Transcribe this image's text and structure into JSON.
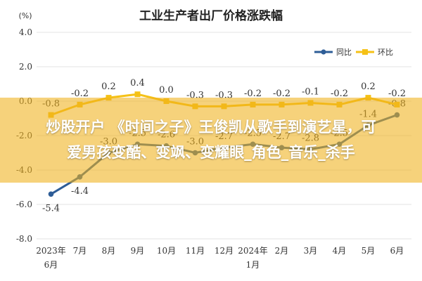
{
  "colors": {
    "yoy": "#2e5d97",
    "mom": "#f5c116",
    "banner": "#f0b21c"
  },
  "banner": {
    "line1": "炒股开户 《时间之子》王俊凯从歌手到演艺星，可",
    "line2": "爱男孩变酷、变飒、变耀眼_角色_音乐_杀手"
  },
  "chart_data": {
    "type": "line",
    "title": "工业生产者出厂价格涨跌幅",
    "ylabel": "(%)",
    "ylim": [
      -8,
      4
    ],
    "yticks": [
      "4.0",
      "2.0",
      "0.0",
      "-2.0",
      "-4.0",
      "-6.0",
      "-8.0"
    ],
    "categories": [
      [
        "2023年",
        "6月"
      ],
      [
        "7月"
      ],
      [
        "8月"
      ],
      [
        "9月"
      ],
      [
        "10月"
      ],
      [
        "11月"
      ],
      [
        "12月"
      ],
      [
        "2024年",
        "1月"
      ],
      [
        "2月"
      ],
      [
        "3月"
      ],
      [
        "4月"
      ],
      [
        "5月"
      ],
      [
        "6月"
      ]
    ],
    "legend_position": "top-right",
    "grid": true,
    "series": [
      {
        "name": "同比",
        "color": "#2e5d97",
        "values": [
          -5.4,
          -4.4,
          -3.0,
          -2.5,
          -2.6,
          -3.0,
          -2.7,
          -2.5,
          -2.7,
          -2.8,
          -2.5,
          -1.4,
          -0.8
        ],
        "labels": [
          "-5.4",
          "-4.4",
          "-3.0",
          "-2.5",
          "-2.6",
          "-3.0",
          "-2.7",
          "-2.5",
          "-2.7",
          "-2.8",
          "-2.5",
          "-1.4",
          "-0.8"
        ]
      },
      {
        "name": "环比",
        "color": "#f5c116",
        "values": [
          -0.8,
          -0.2,
          0.2,
          0.4,
          0.0,
          -0.3,
          -0.3,
          -0.2,
          -0.2,
          -0.1,
          -0.2,
          0.2,
          -0.2
        ],
        "labels": [
          "-0.8",
          "-0.2",
          "0.2",
          "0.4",
          "0.0",
          "-0.3",
          "-0.3",
          "-0.2",
          "-0.2",
          "-0.1",
          "-0.2",
          "0.2",
          "-0.2"
        ]
      }
    ]
  }
}
